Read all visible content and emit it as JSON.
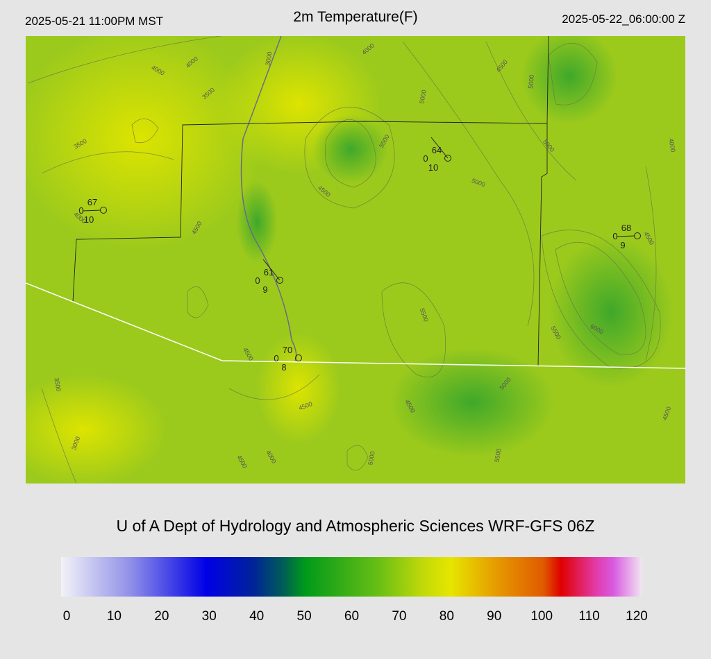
{
  "header": {
    "valid_local": "2025-05-21 11:00PM MST",
    "title": "2m Temperature(F)",
    "valid_utc": "2025-05-22_06:00:00 Z"
  },
  "stations": [
    {
      "temp": "67",
      "left": "0",
      "bottom": "10"
    },
    {
      "temp": "64",
      "left": "0",
      "bottom": "10"
    },
    {
      "temp": "68",
      "left": "0",
      "bottom": "9"
    },
    {
      "temp": "61",
      "left": "0",
      "bottom": "9"
    },
    {
      "temp": "70",
      "left": "0",
      "bottom": "8"
    }
  ],
  "contour_labels": [
    "4000",
    "4000",
    "3000",
    "4000",
    "4500",
    "5000",
    "3500",
    "5000",
    "3500",
    "5500",
    "5000",
    "4000",
    "5000",
    "4500",
    "4000",
    "4500",
    "4500",
    "5500",
    "5500",
    "6000",
    "4500",
    "3500",
    "5000",
    "4500",
    "4500",
    "4500",
    "3000",
    "4000",
    "4500",
    "5000",
    "5500"
  ],
  "footer": "U of A Dept of Hydrology and Atmospheric Sciences WRF-GFS 06Z",
  "colorbar": {
    "ticks": [
      0,
      10,
      20,
      30,
      40,
      50,
      60,
      70,
      80,
      90,
      100,
      110,
      120
    ]
  }
}
